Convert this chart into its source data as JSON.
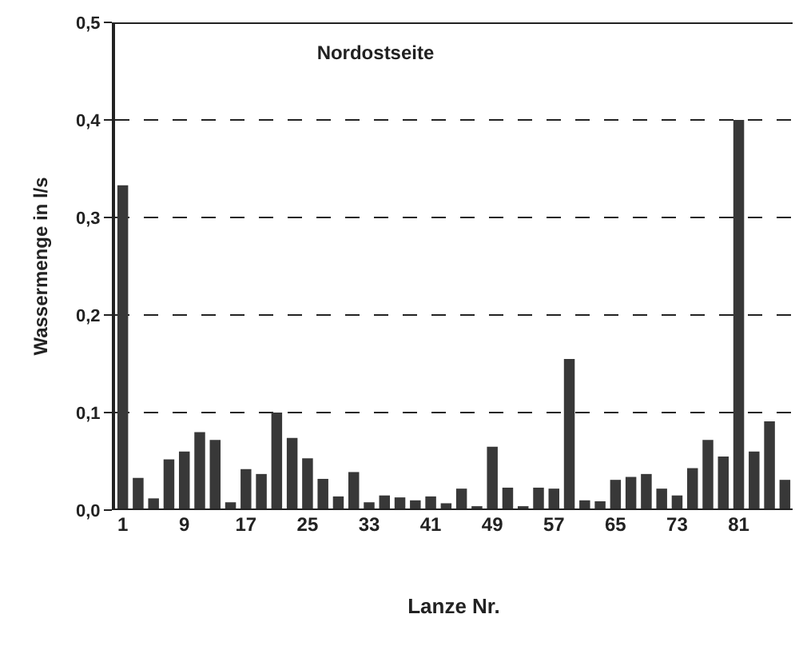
{
  "chart_data": {
    "type": "bar",
    "title": "Nordostseite",
    "xlabel": "Lanze Nr.",
    "ylabel": "Wassermenge in l/s",
    "categories": [
      "1",
      null,
      null,
      null,
      "9",
      null,
      null,
      null,
      "17",
      null,
      null,
      null,
      "25",
      null,
      null,
      null,
      "33",
      null,
      null,
      null,
      "41",
      null,
      null,
      null,
      "49",
      null,
      null,
      null,
      "57",
      null,
      null,
      null,
      "65",
      null,
      null,
      null,
      "73",
      null,
      null,
      null,
      "81",
      null,
      null,
      null
    ],
    "values": [
      0.333,
      0.033,
      0.012,
      0.052,
      0.06,
      0.08,
      0.072,
      0.008,
      0.042,
      0.037,
      0.1,
      0.074,
      0.053,
      0.032,
      0.014,
      0.039,
      0.008,
      0.015,
      0.013,
      0.01,
      0.014,
      0.007,
      0.022,
      0.004,
      0.065,
      0.023,
      0.004,
      0.023,
      0.022,
      0.155,
      0.01,
      0.009,
      0.031,
      0.034,
      0.037,
      0.022,
      0.015,
      0.043,
      0.072,
      0.055,
      0.4,
      0.06,
      0.091,
      0.031
    ],
    "color": "#383838",
    "ylim": [
      0,
      0.5
    ],
    "yticks": [
      {
        "value": 0,
        "label": "0,0"
      },
      {
        "value": 0.1,
        "label": "0,1"
      },
      {
        "value": 0.2,
        "label": "0,2"
      },
      {
        "value": 0.3,
        "label": "0,3"
      },
      {
        "value": 0.4,
        "label": "0,4"
      },
      {
        "value": 0.5,
        "label": "0,5"
      }
    ],
    "grid": "y",
    "line_style": "dashed"
  }
}
